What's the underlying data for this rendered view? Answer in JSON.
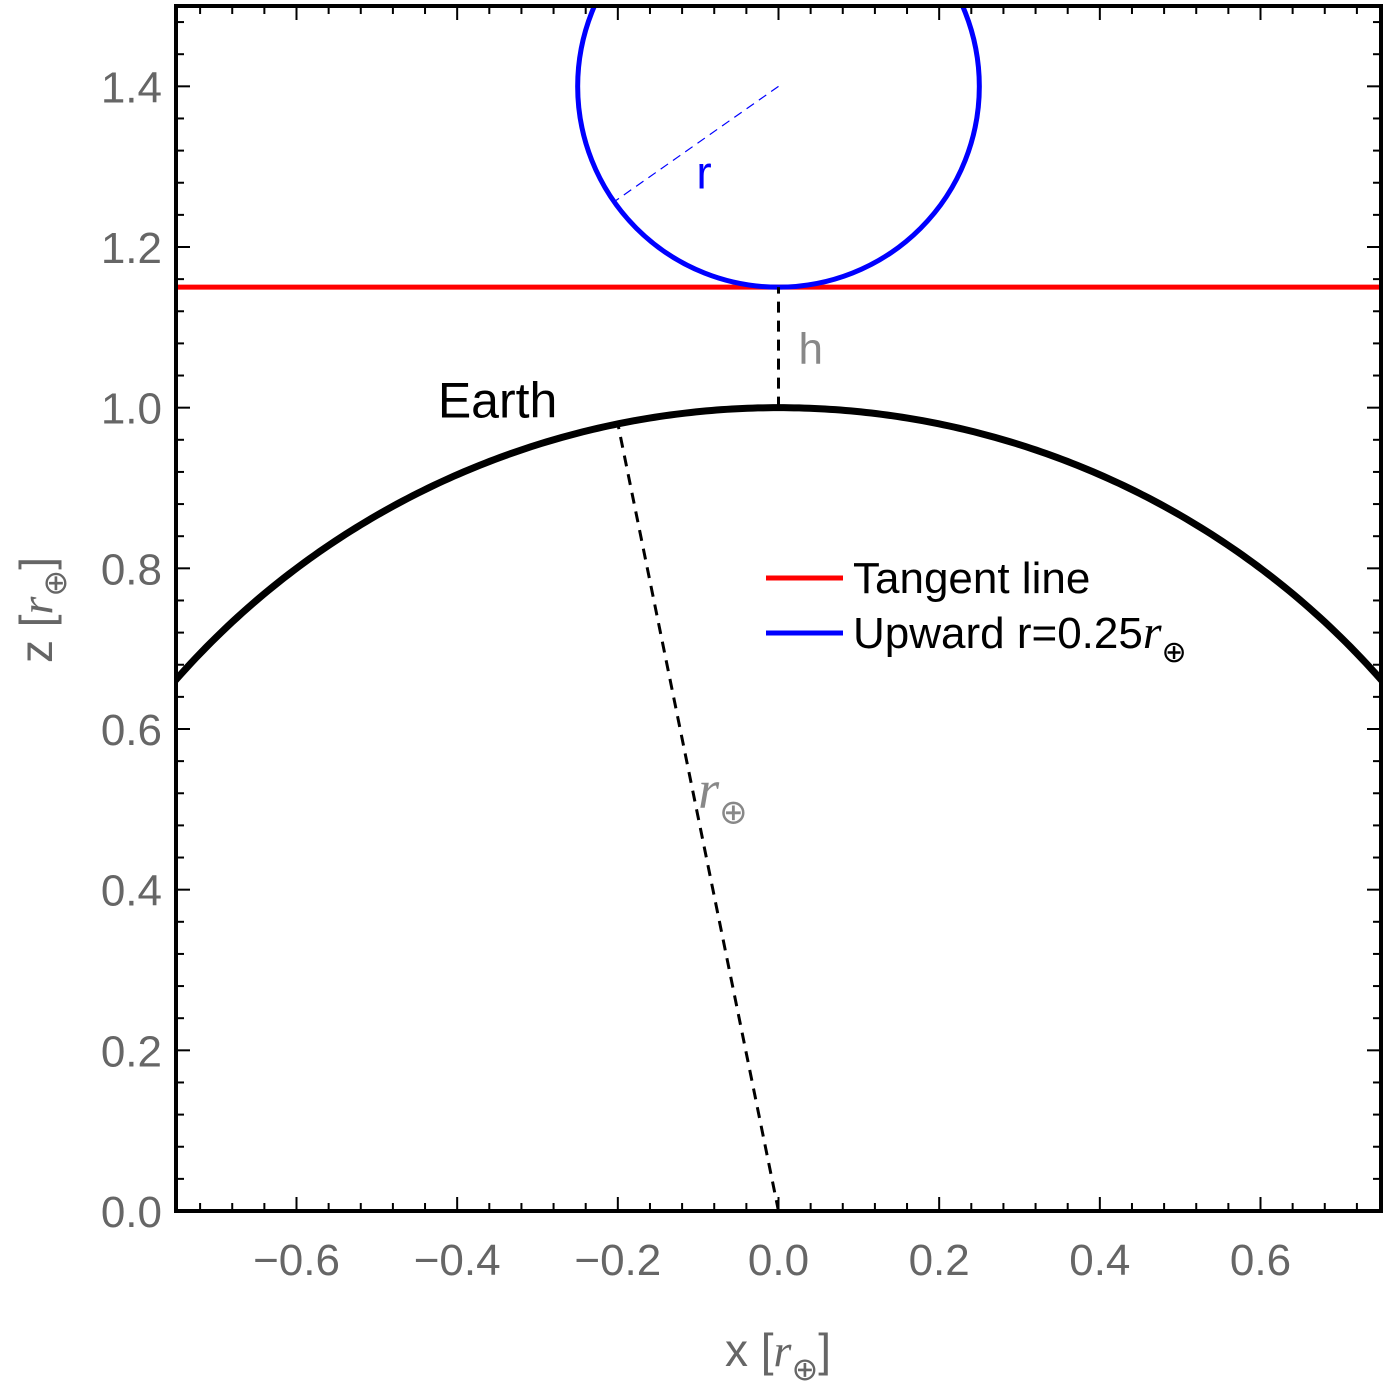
{
  "chart_data": {
    "type": "line",
    "xlabel": {
      "prefix": "x [",
      "symbol": "r",
      "subscript": "⊕",
      "suffix": "]"
    },
    "ylabel": {
      "prefix": "z [",
      "symbol": "r",
      "subscript": "⊕",
      "suffix": "]"
    },
    "xlim": [
      -0.75,
      0.75
    ],
    "ylim": [
      0,
      1.5
    ],
    "x_ticks": [
      -0.6,
      -0.4,
      -0.2,
      0.0,
      0.2,
      0.4,
      0.6
    ],
    "x_tick_labels": [
      "−0.6",
      "−0.4",
      "−0.2",
      "0.0",
      "0.2",
      "0.4",
      "0.6"
    ],
    "y_ticks": [
      0.0,
      0.2,
      0.4,
      0.6,
      0.8,
      1.0,
      1.2,
      1.4
    ],
    "y_tick_labels": [
      "0.0",
      "0.2",
      "0.4",
      "0.6",
      "0.8",
      "1.0",
      "1.2",
      "1.4"
    ],
    "grid": false,
    "legend_position": "right-middle",
    "series": [
      {
        "name": "Tangent line",
        "color": "#ff0000",
        "kind": "horizontal-line",
        "z": 1.15
      },
      {
        "name": "Upward r=0.25",
        "name_symbol": "r",
        "name_subscript": "⊕",
        "color": "#0000ff",
        "kind": "circle",
        "center": [
          0.0,
          1.4
        ],
        "radius": 0.25
      }
    ],
    "earth": {
      "color": "#000000",
      "center": [
        0.0,
        0.0
      ],
      "radius": 1.0
    },
    "annotations": {
      "earth_label": "Earth",
      "h_label": "h",
      "r_label": "r",
      "earth_radius_label": {
        "symbol": "r",
        "subscript": "⊕"
      },
      "h_segment": {
        "from": [
          0.0,
          1.0
        ],
        "to": [
          0.0,
          1.15
        ]
      },
      "earth_radius_segment": {
        "from": [
          0.0,
          0.0
        ],
        "to": [
          -0.2,
          0.98
        ]
      },
      "circle_radius_segment": {
        "from": [
          0.0,
          1.4
        ],
        "to": [
          -0.205,
          1.256
        ]
      }
    },
    "colors": {
      "axis_text": "#666666",
      "frame": "#000000",
      "h_label": "#888888",
      "r_earth_label": "#888888"
    }
  }
}
